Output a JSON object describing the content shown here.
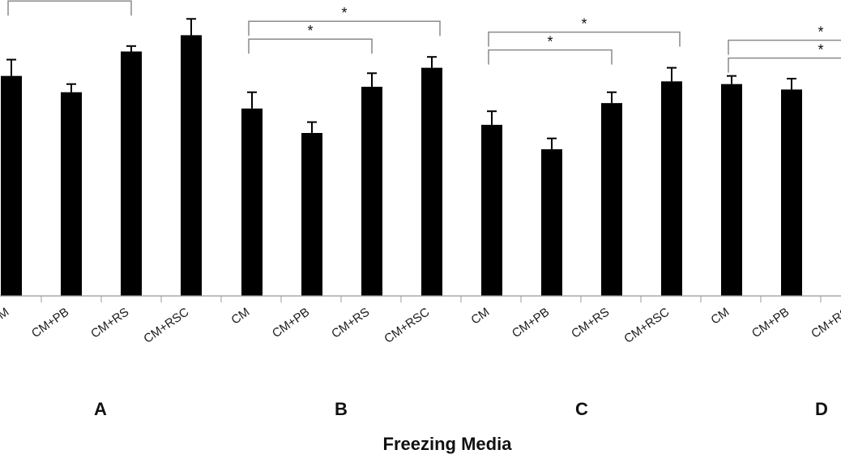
{
  "chart_data": {
    "type": "bar",
    "title": "",
    "xlabel": "Freezing Media",
    "ylabel": "",
    "ylim": [
      0,
      100
    ],
    "grid": false,
    "legend": "none",
    "bar_color": "#000000",
    "groups": [
      {
        "label": "A",
        "categories": [
          "CM",
          "CM+PB",
          "CM+RS",
          "CM+RSC"
        ],
        "values": [
          81,
          75,
          90,
          96
        ],
        "errors": [
          6,
          3,
          2,
          6
        ],
        "brackets": [
          {
            "from": "CM",
            "to": "CM+RSC",
            "label": "*"
          },
          {
            "from": "CM",
            "to": "CM+RS",
            "label": "*"
          }
        ]
      },
      {
        "label": "B",
        "categories": [
          "CM",
          "CM+PB",
          "CM+RS",
          "CM+RSC"
        ],
        "values": [
          69,
          60,
          77,
          84
        ],
        "errors": [
          6,
          4,
          5,
          4
        ],
        "brackets": [
          {
            "from": "CM",
            "to": "CM+RSC",
            "label": "*"
          },
          {
            "from": "CM",
            "to": "CM+RS",
            "label": "*"
          }
        ]
      },
      {
        "label": "C",
        "categories": [
          "CM",
          "CM+PB",
          "CM+RS",
          "CM+RSC"
        ],
        "values": [
          63,
          54,
          71,
          79
        ],
        "errors": [
          5,
          4,
          4,
          5
        ],
        "brackets": [
          {
            "from": "CM",
            "to": "CM+RSC",
            "label": "*"
          },
          {
            "from": "CM",
            "to": "CM+RS",
            "label": "*"
          }
        ]
      },
      {
        "label": "D",
        "categories": [
          "CM",
          "CM+PB",
          "CM+RS"
        ],
        "values": [
          78,
          76,
          0
        ],
        "errors": [
          3,
          4,
          0
        ],
        "brackets": [
          {
            "from": "CM",
            "to": "offscreen",
            "label": "*"
          },
          {
            "from": "CM",
            "to": "offscreen",
            "label": "*"
          }
        ]
      }
    ]
  }
}
